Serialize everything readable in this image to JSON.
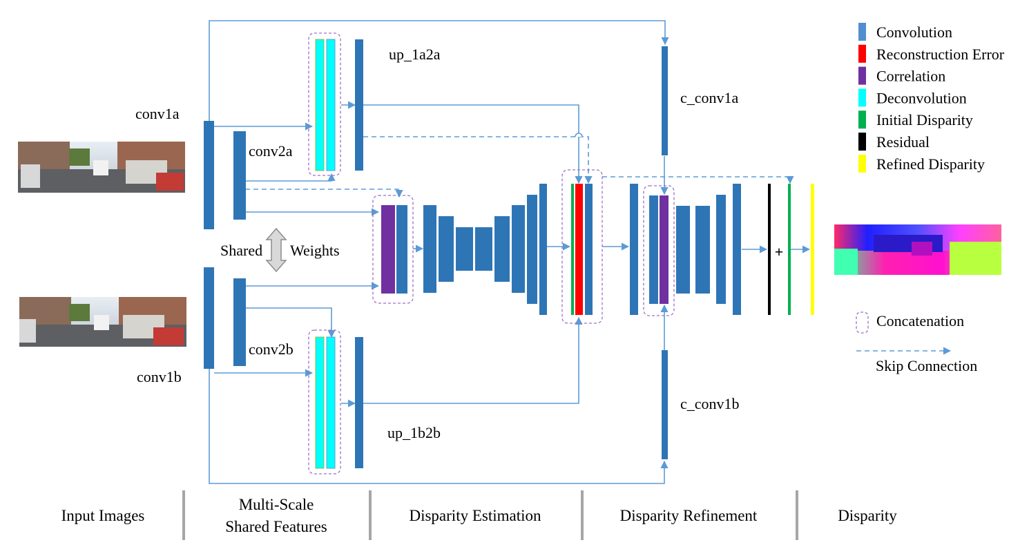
{
  "labels": {
    "conv1a": "conv1a",
    "conv2a": "conv2a",
    "conv1b": "conv1b",
    "conv2b": "conv2b",
    "up_1a2a": "up_1a2a",
    "up_1b2b": "up_1b2b",
    "c_conv1a": "c_conv1a",
    "c_conv1b": "c_conv1b",
    "shared": "Shared",
    "weights": "Weights",
    "plus": "+"
  },
  "legend": {
    "items": [
      {
        "label": "Convolution",
        "color": "#4f8fd0"
      },
      {
        "label": "Reconstruction Error",
        "color": "#ff0000"
      },
      {
        "label": "Correlation",
        "color": "#7030a0"
      },
      {
        "label": "Deconvolution",
        "color": "#00ffff"
      },
      {
        "label": "Initial Disparity",
        "color": "#00b050"
      },
      {
        "label": "Residual",
        "color": "#000000"
      },
      {
        "label": "Refined Disparity",
        "color": "#ffff00"
      }
    ],
    "concatenation": "Concatenation",
    "skip_connection": "Skip Connection"
  },
  "stages": {
    "input_images": "Input Images",
    "multi_scale_line1": "Multi-Scale",
    "multi_scale_line2": "Shared Features",
    "disparity_estimation": "Disparity Estimation",
    "disparity_refinement": "Disparity Refinement",
    "disparity": "Disparity"
  },
  "colors": {
    "conv": "#2e75b6",
    "arrow": "#5b9bd5",
    "concat_box": "#9d6fc7",
    "deconv": "#00ffff",
    "correlation": "#7030a0",
    "recon_error": "#ff0000",
    "initial_disp": "#00b050",
    "refined_disp": "#ffff00"
  }
}
